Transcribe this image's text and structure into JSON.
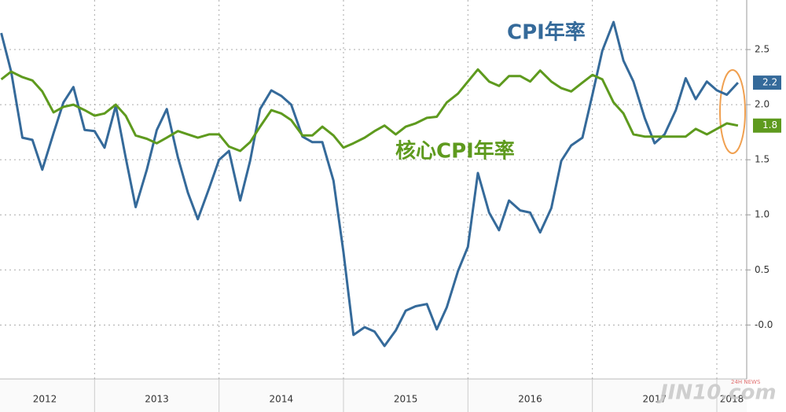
{
  "chart_data": {
    "type": "line",
    "x": [
      2012.25,
      2012.33,
      2012.42,
      2012.5,
      2012.58,
      2012.67,
      2012.75,
      2012.83,
      2012.92,
      2013,
      2013.08,
      2013.17,
      2013.25,
      2013.33,
      2013.42,
      2013.5,
      2013.58,
      2013.67,
      2013.75,
      2013.83,
      2013.92,
      2014,
      2014.08,
      2014.17,
      2014.25,
      2014.33,
      2014.42,
      2014.5,
      2014.58,
      2014.67,
      2014.75,
      2014.83,
      2014.92,
      2015,
      2015.08,
      2015.17,
      2015.25,
      2015.33,
      2015.42,
      2015.5,
      2015.58,
      2015.67,
      2015.75,
      2015.83,
      2015.92,
      2016,
      2016.08,
      2016.17,
      2016.25,
      2016.33,
      2016.42,
      2016.5,
      2016.58,
      2016.67,
      2016.75,
      2016.83,
      2016.92,
      2017,
      2017.08,
      2017.17,
      2017.25,
      2017.33,
      2017.42,
      2017.5,
      2017.58,
      2017.67,
      2017.75,
      2017.83,
      2017.92,
      2018,
      2018.08,
      2018.17
    ],
    "series": [
      {
        "name": "CPI年率",
        "color": "#356a9a",
        "end_label": "2.2",
        "values": [
          2.65,
          2.3,
          1.7,
          1.68,
          1.41,
          1.74,
          2.02,
          2.16,
          1.77,
          1.76,
          1.61,
          1.99,
          1.52,
          1.07,
          1.41,
          1.77,
          1.96,
          1.52,
          1.2,
          0.96,
          1.24,
          1.5,
          1.58,
          1.13,
          1.49,
          1.96,
          2.13,
          2.08,
          2.0,
          1.71,
          1.66,
          1.66,
          1.31,
          0.66,
          -0.09,
          -0.02,
          -0.06,
          -0.19,
          -0.05,
          0.13,
          0.17,
          0.19,
          -0.04,
          0.16,
          0.49,
          0.71,
          1.38,
          1.02,
          0.86,
          1.13,
          1.04,
          1.02,
          0.84,
          1.06,
          1.49,
          1.63,
          1.7,
          2.09,
          2.49,
          2.75,
          2.4,
          2.21,
          1.88,
          1.65,
          1.73,
          1.95,
          2.24,
          2.05,
          2.21,
          2.13,
          2.09,
          2.2
        ]
      },
      {
        "name": "核心CPI年率",
        "color": "#5e9a1e",
        "end_label": "1.8",
        "values": [
          2.23,
          2.3,
          2.25,
          2.22,
          2.12,
          1.93,
          1.98,
          2.0,
          1.95,
          1.9,
          1.92,
          2.0,
          1.9,
          1.72,
          1.69,
          1.65,
          1.7,
          1.76,
          1.73,
          1.7,
          1.73,
          1.73,
          1.62,
          1.58,
          1.66,
          1.8,
          1.95,
          1.92,
          1.86,
          1.72,
          1.72,
          1.8,
          1.72,
          1.61,
          1.65,
          1.7,
          1.76,
          1.81,
          1.73,
          1.8,
          1.83,
          1.88,
          1.89,
          2.02,
          2.1,
          2.21,
          2.32,
          2.21,
          2.17,
          2.26,
          2.26,
          2.21,
          2.31,
          2.21,
          2.15,
          2.12,
          2.2,
          2.27,
          2.23,
          2.02,
          1.92,
          1.73,
          1.71,
          1.71,
          1.71,
          1.71,
          1.71,
          1.78,
          1.73,
          1.78,
          1.83,
          1.81
        ]
      }
    ],
    "xlim": [
      2012.24,
      2018.24
    ],
    "xticks": [
      {
        "value": 2012.6,
        "label": "2012"
      },
      {
        "value": 2013.5,
        "label": "2013"
      },
      {
        "value": 2014.5,
        "label": "2014"
      },
      {
        "value": 2015.5,
        "label": "2015"
      },
      {
        "value": 2016.5,
        "label": "2016"
      },
      {
        "value": 2017.5,
        "label": "2017"
      },
      {
        "value": 2018.12,
        "label": "2018"
      }
    ],
    "ylim": [
      -0.49,
      2.95
    ],
    "yticks": [
      {
        "value": 0,
        "label": "-0.0"
      },
      0.5,
      {
        "value": 1,
        "label": "1.0"
      },
      1.5,
      {
        "value": 2,
        "label": "2.0"
      },
      2.5
    ],
    "grid": true,
    "watermark": "JIN10.com",
    "watermark_tag": "24H NEWS"
  }
}
